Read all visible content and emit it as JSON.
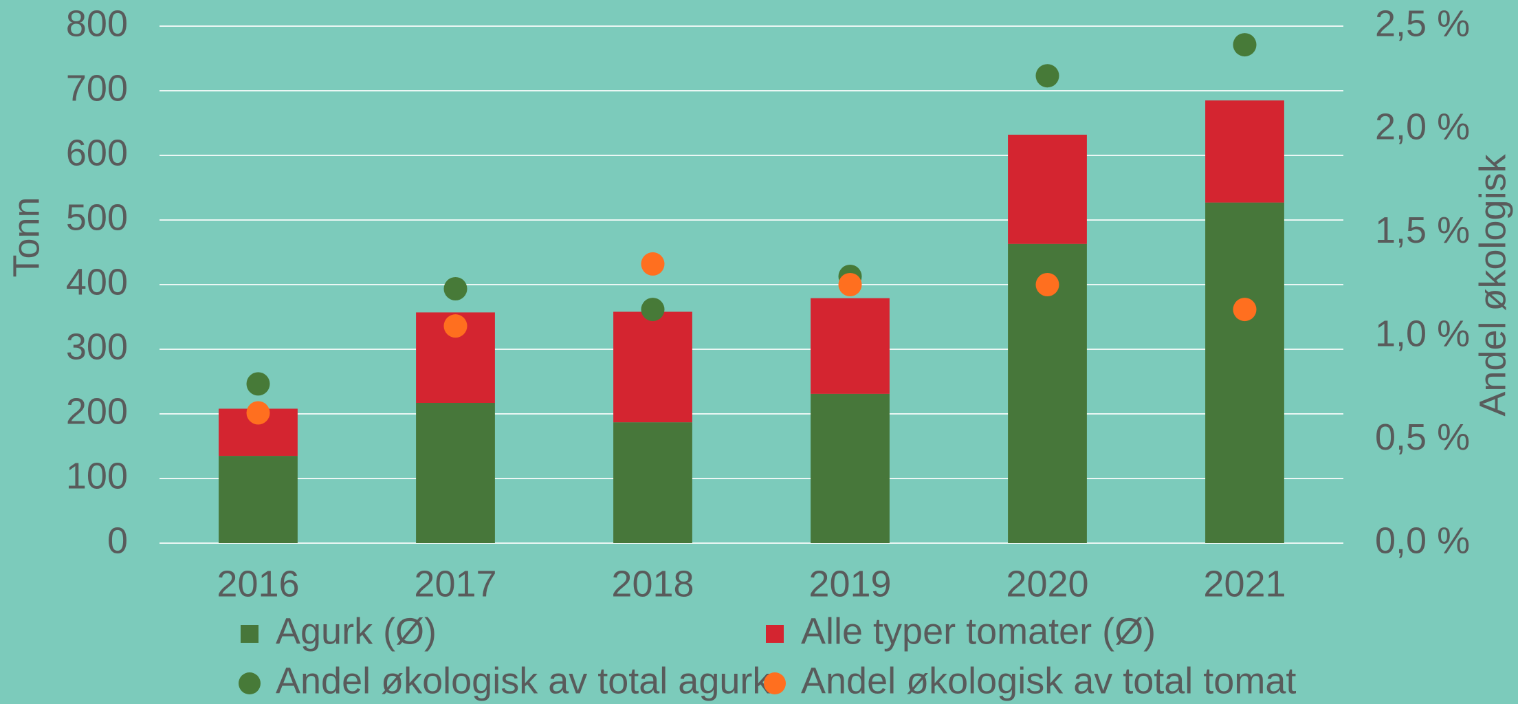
{
  "chart_data": {
    "type": "bar",
    "stacked": true,
    "categories": [
      "2016",
      "2017",
      "2018",
      "2019",
      "2020",
      "2021"
    ],
    "ylabel": "Tonn",
    "y2label": "Andel økologisk",
    "ylim": [
      0,
      800
    ],
    "yticks": [
      0,
      100,
      200,
      300,
      400,
      500,
      600,
      700,
      800
    ],
    "y2lim": [
      0,
      2.5
    ],
    "y2ticks": [
      {
        "value": 0,
        "label": "0,0 %"
      },
      {
        "value": 0.5,
        "label": "0,5 %"
      },
      {
        "value": 1.0,
        "label": "1,0 %"
      },
      {
        "value": 1.5,
        "label": "1,5 %"
      },
      {
        "value": 2.0,
        "label": "2,0 %"
      },
      {
        "value": 2.5,
        "label": "2,5 %"
      }
    ],
    "grid": true,
    "legend": "bottom",
    "series": [
      {
        "name": "Agurk (Ø)",
        "color": "#47773a",
        "values": [
          135,
          217,
          187,
          231,
          463,
          527
        ]
      },
      {
        "name": "Alle typer tomater (Ø)",
        "color": "#d42530",
        "values": [
          73,
          140,
          171,
          148,
          169,
          158
        ]
      },
      {
        "name": "Andel økologisk av total agurk",
        "color": "#477a38",
        "axis": "y2",
        "values": [
          0.77,
          1.23,
          1.13,
          1.29,
          2.26,
          2.41
        ]
      },
      {
        "name": "Andel økologisk av total tomat",
        "color": "#ff6f1f",
        "axis": "y2",
        "values": [
          0.63,
          1.05,
          1.35,
          1.25,
          1.25,
          1.13
        ]
      }
    ]
  }
}
